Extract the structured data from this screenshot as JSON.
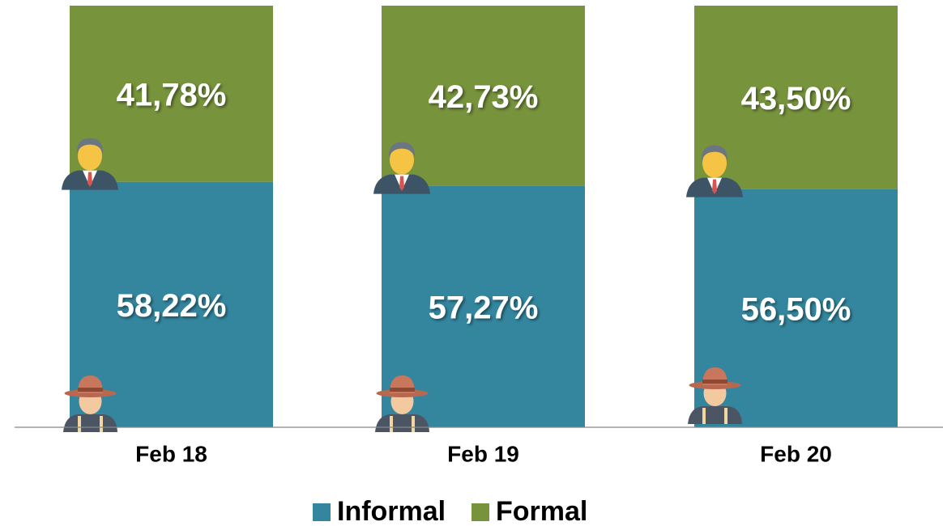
{
  "chart_data": {
    "type": "stacked_bar",
    "categories": [
      "Feb 18",
      "Feb 19",
      "Feb 20"
    ],
    "series": [
      {
        "name": "Informal",
        "color": "#33869e",
        "values": [
          58.22,
          57.27,
          56.5
        ],
        "value_labels": [
          "58,22%",
          "57,27%",
          "56,50%"
        ]
      },
      {
        "name": "Formal",
        "color": "#77933c",
        "values": [
          41.78,
          42.73,
          43.5
        ],
        "value_labels": [
          "41,78%",
          "42,73%",
          "43,50%"
        ]
      }
    ],
    "ylim": [
      0,
      100
    ],
    "legend": "bottom"
  }
}
